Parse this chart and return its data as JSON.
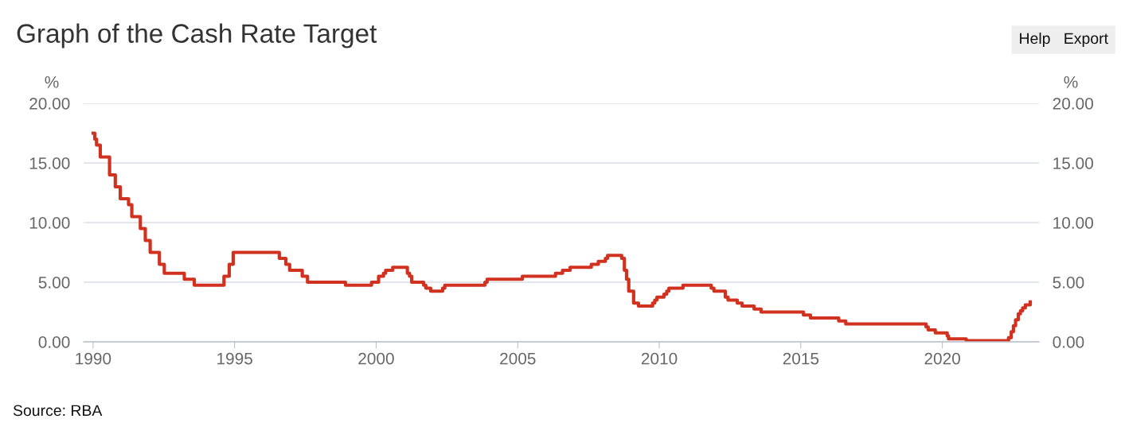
{
  "chart_data": {
    "type": "step",
    "title": "Graph of the Cash Rate Target",
    "ylabel": "%",
    "y2label": "%",
    "annotations": [
      "Source: RBA",
      "Help",
      "Export"
    ],
    "x": [
      "1990-01-02",
      "1990-01-23",
      "1990-02-15",
      "1990-04-04",
      "1990-08-02",
      "1990-10-15",
      "1990-12-18",
      "1991-04-04",
      "1991-05-16",
      "1991-09-03",
      "1991-11-06",
      "1992-01-08",
      "1992-05-06",
      "1992-07-08",
      "1993-03-23",
      "1993-07-30",
      "1994-08-17",
      "1994-10-24",
      "1994-12-14",
      "1996-07-31",
      "1996-10-23",
      "1996-12-11",
      "1997-05-23",
      "1997-07-30",
      "1998-12-02",
      "1999-11-03",
      "2000-02-02",
      "2000-04-05",
      "2000-05-03",
      "2000-08-02",
      "2001-02-07",
      "2001-03-07",
      "2001-04-04",
      "2001-09-05",
      "2001-10-03",
      "2001-12-05",
      "2002-05-08",
      "2002-06-05",
      "2003-11-05",
      "2003-12-03",
      "2005-03-02",
      "2006-05-03",
      "2006-08-02",
      "2006-11-08",
      "2007-08-08",
      "2007-11-07",
      "2008-02-06",
      "2008-03-05",
      "2008-09-03",
      "2008-10-08",
      "2008-11-05",
      "2008-12-03",
      "2009-02-04",
      "2009-04-08",
      "2009-10-07",
      "2009-11-04",
      "2009-12-02",
      "2010-03-03",
      "2010-04-07",
      "2010-05-05",
      "2010-11-03",
      "2011-11-02",
      "2011-12-07",
      "2012-05-02",
      "2012-06-06",
      "2012-10-03",
      "2012-12-05",
      "2013-05-08",
      "2013-08-07",
      "2015-02-04",
      "2015-05-06",
      "2016-05-04",
      "2016-08-03",
      "2019-06-05",
      "2019-07-03",
      "2019-10-02",
      "2020-03-04",
      "2020-03-20",
      "2020-11-04",
      "2022-05-04",
      "2022-06-08",
      "2022-07-06",
      "2022-08-03",
      "2022-09-07",
      "2022-10-05",
      "2022-11-02",
      "2022-12-07",
      "2023-02-08"
    ],
    "series": [
      {
        "color": "#d1311f",
        "values": [
          17.5,
          17.0,
          16.5,
          15.5,
          14.0,
          13.0,
          12.0,
          11.5,
          10.5,
          9.5,
          8.5,
          7.5,
          6.5,
          5.75,
          5.25,
          4.75,
          5.5,
          6.5,
          7.5,
          7.0,
          6.5,
          6.0,
          5.5,
          5.0,
          4.75,
          5.0,
          5.5,
          5.75,
          6.0,
          6.25,
          5.75,
          5.5,
          5.0,
          4.75,
          4.5,
          4.25,
          4.5,
          4.75,
          5.0,
          5.25,
          5.5,
          5.75,
          6.0,
          6.25,
          6.5,
          6.75,
          7.0,
          7.25,
          7.0,
          6.0,
          5.25,
          4.25,
          3.25,
          3.0,
          3.25,
          3.5,
          3.75,
          4.0,
          4.25,
          4.5,
          4.75,
          4.5,
          4.25,
          3.75,
          3.5,
          3.25,
          3.0,
          2.75,
          2.5,
          2.25,
          2.0,
          1.75,
          1.5,
          1.25,
          1.0,
          0.75,
          0.5,
          0.25,
          0.1,
          0.35,
          0.85,
          1.35,
          1.85,
          2.35,
          2.6,
          2.85,
          3.1,
          3.35
        ]
      }
    ],
    "xlim": [
      "1989-09-01",
      "2023-06-01"
    ],
    "xticks": [
      {
        "value": "1990-01-01",
        "label": "1990"
      },
      {
        "value": "1995-01-01",
        "label": "1995"
      },
      {
        "value": "2000-01-01",
        "label": "2000"
      },
      {
        "value": "2005-01-01",
        "label": "2005"
      },
      {
        "value": "2010-01-01",
        "label": "2010"
      },
      {
        "value": "2015-01-01",
        "label": "2015"
      },
      {
        "value": "2020-01-01",
        "label": "2020"
      }
    ],
    "ylim": [
      0,
      20
    ],
    "yticks": [
      {
        "value": 0,
        "label": "0.00"
      },
      {
        "value": 5,
        "label": "5.00"
      },
      {
        "value": 10,
        "label": "10.00"
      },
      {
        "value": 15,
        "label": "15.00"
      },
      {
        "value": 20,
        "label": "20.00"
      }
    ],
    "y2lim": [
      0,
      20
    ],
    "y2ticks": [
      {
        "value": 0,
        "label": "0.00"
      },
      {
        "value": 5,
        "label": "5.00"
      },
      {
        "value": 10,
        "label": "10.00"
      },
      {
        "value": 15,
        "label": "15.00"
      },
      {
        "value": 20,
        "label": "20.00"
      }
    ],
    "grid": "y",
    "legend": false,
    "line_style": "solid",
    "marker": "none"
  }
}
